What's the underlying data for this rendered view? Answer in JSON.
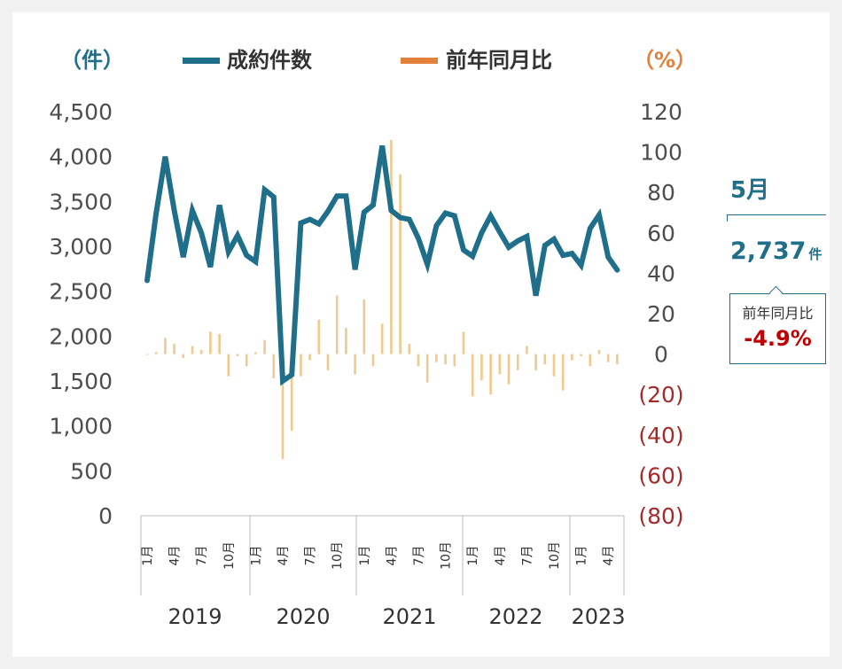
{
  "legend": {
    "left_unit": "（件）",
    "right_unit": "（%）",
    "series1_name": "成約件数",
    "series2_name": "前年同月比"
  },
  "colors": {
    "series1": "#1f6f8b",
    "series2_bar": "#f0c98e",
    "series2_legend": "#e2823a",
    "negative_tick": "#a52a2a",
    "callout_value": "#1f6f8b",
    "callout_yoy": "#c00000"
  },
  "callout": {
    "month": "5月",
    "value": "2,737",
    "unit": "件",
    "yoy_label": "前年同月比",
    "yoy_value": "-4.9%"
  },
  "chart_data": {
    "type": "line",
    "title": "",
    "left_axis": {
      "ticks": [
        "0",
        "500",
        "1,000",
        "1,500",
        "2,000",
        "2,500",
        "3,000",
        "3,500",
        "4,000",
        "4,500"
      ],
      "ylim": [
        0,
        4500
      ]
    },
    "right_axis": {
      "ticks": [
        "(80)",
        "(60)",
        "(40)",
        "(20)",
        "0",
        "20",
        "40",
        "60",
        "80",
        "100",
        "120"
      ],
      "ylim": [
        -80,
        120
      ]
    },
    "month_labels": [
      "1月",
      "4月",
      "7月",
      "10月",
      "1月",
      "4月",
      "7月",
      "10月",
      "1月",
      "4月",
      "7月",
      "10月",
      "1月",
      "4月",
      "7月",
      "10月",
      "1月",
      "4月"
    ],
    "year_labels": [
      "2019",
      "2020",
      "2021",
      "2022",
      "2023"
    ],
    "series": [
      {
        "name": "成約件数",
        "axis": "left",
        "kind": "line",
        "values": [
          2620,
          3370,
          4000,
          3400,
          2880,
          3400,
          3150,
          2770,
          3460,
          2940,
          3120,
          2900,
          2830,
          3630,
          3550,
          1500,
          1570,
          3260,
          3300,
          3250,
          3390,
          3560,
          3560,
          2740,
          3380,
          3460,
          4120,
          3400,
          3320,
          3300,
          3090,
          2800,
          3230,
          3370,
          3340,
          2960,
          2890,
          3150,
          3340,
          3160,
          2990,
          3060,
          3110,
          2450,
          3010,
          3080,
          2900,
          2920,
          2790,
          3200,
          3350,
          2880,
          2737
        ]
      },
      {
        "name": "前年同月比",
        "axis": "right",
        "kind": "bar",
        "values": [
          0,
          1,
          8,
          5,
          -2,
          4,
          2,
          11,
          10,
          -11,
          -1,
          -6,
          1,
          7,
          -12,
          -52,
          -38,
          -11,
          -3,
          17,
          -8,
          29,
          13,
          -10,
          27,
          -6,
          15,
          106,
          89,
          5,
          -6,
          -14,
          -4,
          -5,
          -6,
          11,
          -21,
          -13,
          -20,
          -10,
          -15,
          -8,
          4,
          -8,
          -5,
          -11,
          -18,
          -3,
          -1,
          -6,
          2,
          -4,
          -5
        ]
      }
    ]
  }
}
